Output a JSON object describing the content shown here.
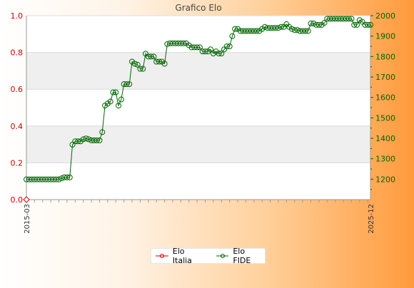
{
  "chart_data": {
    "type": "line",
    "title": "Grafico Elo",
    "y_left": {
      "ylim": [
        0.0,
        1.0
      ],
      "ticks": [
        "0.0",
        "0.2",
        "0.4",
        "0.6",
        "0.8",
        "1.0"
      ],
      "color": "#cc0000"
    },
    "y_right": {
      "ylim": [
        1100,
        2000
      ],
      "ticks": [
        "1200",
        "1300",
        "1400",
        "1500",
        "1600",
        "1700",
        "1800",
        "1900",
        "2000"
      ],
      "color": "#006600"
    },
    "x_tick_labels": {
      "first": "2015-03",
      "last": "2025-12"
    },
    "grid": true,
    "legend_position": "bottom-center",
    "series": [
      {
        "name": "Elo Italia",
        "color": "#cc0000",
        "axis": "left",
        "values": [
          0.0
        ]
      },
      {
        "name": "Elo FIDE",
        "color": "#006600",
        "axis": "right",
        "values": [
          1199,
          1199,
          1199,
          1199,
          1199,
          1199,
          1199,
          1199,
          1199,
          1199,
          1199,
          1199,
          1199,
          1204,
          1209,
          1209,
          1209,
          1369,
          1385,
          1385,
          1385,
          1395,
          1399,
          1395,
          1390,
          1390,
          1390,
          1390,
          1430,
          1560,
          1570,
          1580,
          1625,
          1625,
          1560,
          1590,
          1665,
          1665,
          1665,
          1775,
          1765,
          1760,
          1740,
          1740,
          1814,
          1800,
          1800,
          1800,
          1775,
          1775,
          1775,
          1765,
          1861,
          1865,
          1865,
          1865,
          1865,
          1865,
          1865,
          1865,
          1855,
          1845,
          1845,
          1845,
          1845,
          1825,
          1825,
          1825,
          1835,
          1815,
          1825,
          1815,
          1815,
          1835,
          1850,
          1850,
          1900,
          1935,
          1935,
          1925,
          1925,
          1925,
          1925,
          1925,
          1925,
          1925,
          1925,
          1935,
          1945,
          1940,
          1940,
          1940,
          1940,
          1940,
          1945,
          1945,
          1958,
          1945,
          1935,
          1930,
          1930,
          1925,
          1925,
          1925,
          1925,
          1962,
          1962,
          1955,
          1955,
          1955,
          1965,
          1985,
          1985,
          1985,
          1985,
          1985,
          1985,
          1985,
          1985,
          1985,
          1985,
          1955,
          1955,
          1978,
          1970,
          1955,
          1955,
          1955
        ]
      }
    ]
  }
}
